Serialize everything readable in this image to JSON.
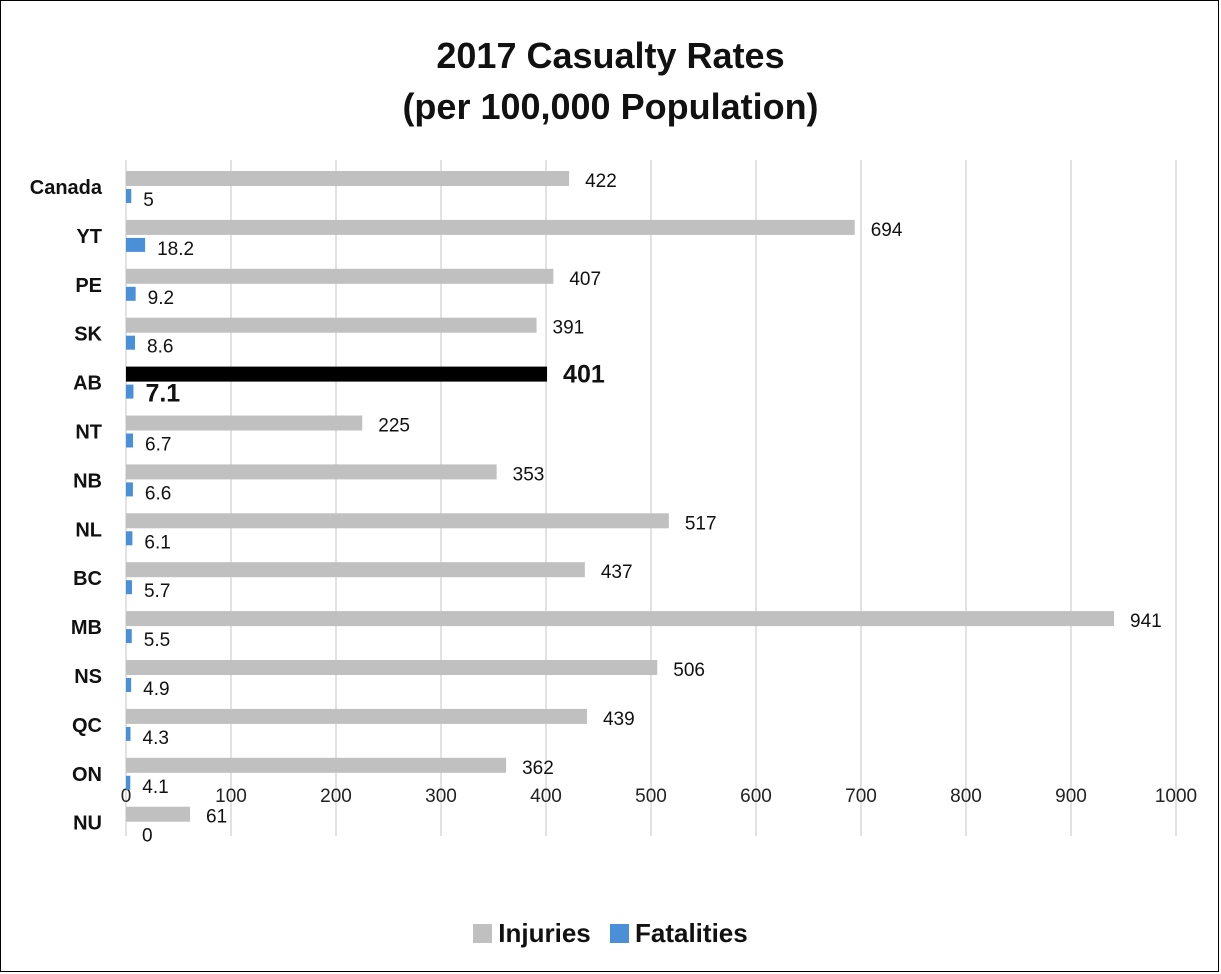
{
  "chart_data": {
    "type": "bar",
    "orientation": "horizontal",
    "title_line1": "2017 Casualty Rates",
    "title_line2": "(per 100,000 Population)",
    "categories": [
      "Canada",
      "YT",
      "PE",
      "SK",
      "AB",
      "NT",
      "NB",
      "NL",
      "BC",
      "MB",
      "NS",
      "QC",
      "ON",
      "NU"
    ],
    "series": [
      {
        "name": "Injuries",
        "color": "#c0c0c0",
        "values": [
          422,
          694,
          407,
          391,
          401,
          225,
          353,
          517,
          437,
          941,
          506,
          439,
          362,
          61
        ],
        "labels": [
          "422",
          "694",
          "407",
          "391",
          "401",
          "225",
          "353",
          "517",
          "437",
          "941",
          "506",
          "439",
          "362",
          "61"
        ]
      },
      {
        "name": "Fatalities",
        "color": "#4a90d9",
        "values": [
          5,
          18.2,
          9.2,
          8.6,
          7.1,
          6.7,
          6.6,
          6.1,
          5.7,
          5.5,
          4.9,
          4.3,
          4.1,
          0
        ],
        "labels": [
          "5",
          "18.2",
          "9.2",
          "8.6",
          "7.1",
          "6.7",
          "6.6",
          "6.1",
          "5.7",
          "5.5",
          "4.9",
          "4.3",
          "4.1",
          "0"
        ]
      }
    ],
    "highlight_category": "AB",
    "highlight_color": "#000000",
    "xlim": [
      0,
      1000
    ],
    "x_ticks": [
      "0",
      "100",
      "200",
      "300",
      "400",
      "500",
      "600",
      "700",
      "800",
      "900",
      "1000"
    ],
    "grid": "vertical",
    "legend_position": "bottom"
  }
}
